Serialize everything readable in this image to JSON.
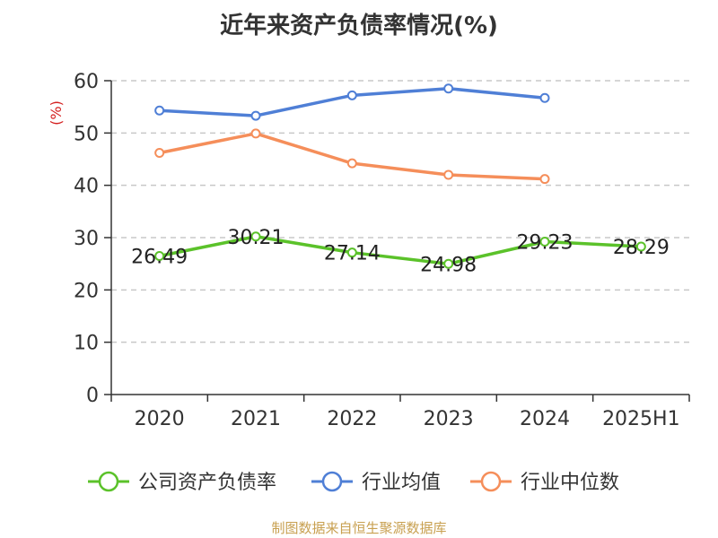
{
  "chart_data": {
    "type": "line",
    "title": "近年来资产负债率情况(%)",
    "ylabel": "(%)",
    "xlabel": "",
    "categories": [
      "2020",
      "2021",
      "2022",
      "2023",
      "2024",
      "2025H1"
    ],
    "ylim": [
      0,
      60
    ],
    "yticks": [
      0,
      10,
      20,
      30,
      40,
      50,
      60
    ],
    "grid": "horizontal dashed",
    "legend_position": "bottom",
    "series": [
      {
        "name": "公司资产负债率",
        "color": "#5bc22a",
        "values": [
          26.49,
          30.21,
          27.14,
          24.98,
          29.23,
          28.29
        ],
        "labels": [
          "26.49",
          "30.21",
          "27.14",
          "24.98",
          "29.23",
          "28.29"
        ]
      },
      {
        "name": "行业均值",
        "color": "#4f7fd6",
        "values": [
          54.3,
          53.3,
          57.2,
          58.5,
          56.7,
          null
        ]
      },
      {
        "name": "行业中位数",
        "color": "#f58e5a",
        "values": [
          46.2,
          49.9,
          44.2,
          42.0,
          41.2,
          null
        ]
      }
    ]
  },
  "footer": "制图数据来自恒生聚源数据库"
}
